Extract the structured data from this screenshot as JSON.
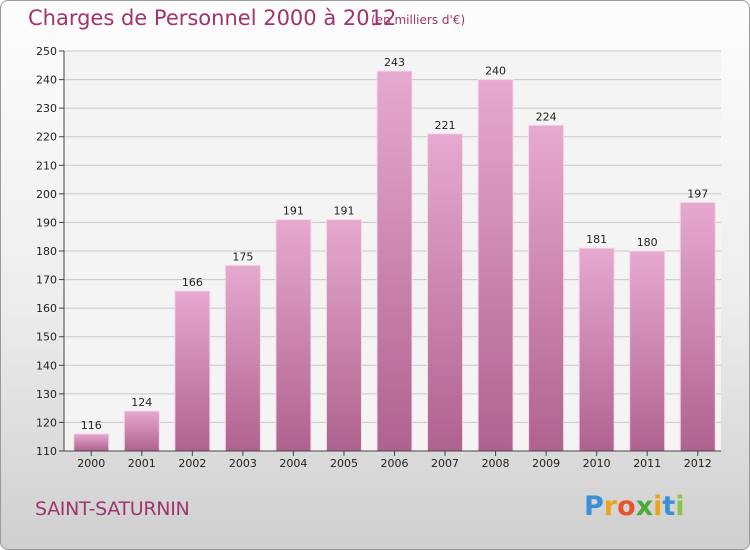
{
  "header": {
    "title": "Charges de Personnel 2000 à 2012",
    "subtitle": "(en milliers d'€)"
  },
  "footer": {
    "town": "SAINT-SATURNIN",
    "logo_letters": [
      "P",
      "r",
      "o",
      "x",
      "i",
      "t",
      "i"
    ]
  },
  "colors": {
    "title": "#a0346e",
    "bar_top": "#e6a9cf",
    "bar_bottom": "#b0628f",
    "logo": [
      "#3b8fd4",
      "#f0a21a",
      "#e8542a",
      "#4aaa3c",
      "#f0a21a",
      "#3b8fd4",
      "#8bc34a"
    ]
  },
  "chart_data": {
    "type": "bar",
    "categories": [
      "2000",
      "2001",
      "2002",
      "2003",
      "2004",
      "2005",
      "2006",
      "2007",
      "2008",
      "2009",
      "2010",
      "2011",
      "2012"
    ],
    "values": [
      116,
      124,
      166,
      175,
      191,
      191,
      243,
      221,
      240,
      224,
      181,
      180,
      197
    ],
    "ylim": [
      110,
      250
    ],
    "yticks": [
      110,
      120,
      130,
      140,
      150,
      160,
      170,
      180,
      190,
      200,
      210,
      220,
      230,
      240,
      250
    ],
    "grid": true,
    "data_labels": true
  }
}
